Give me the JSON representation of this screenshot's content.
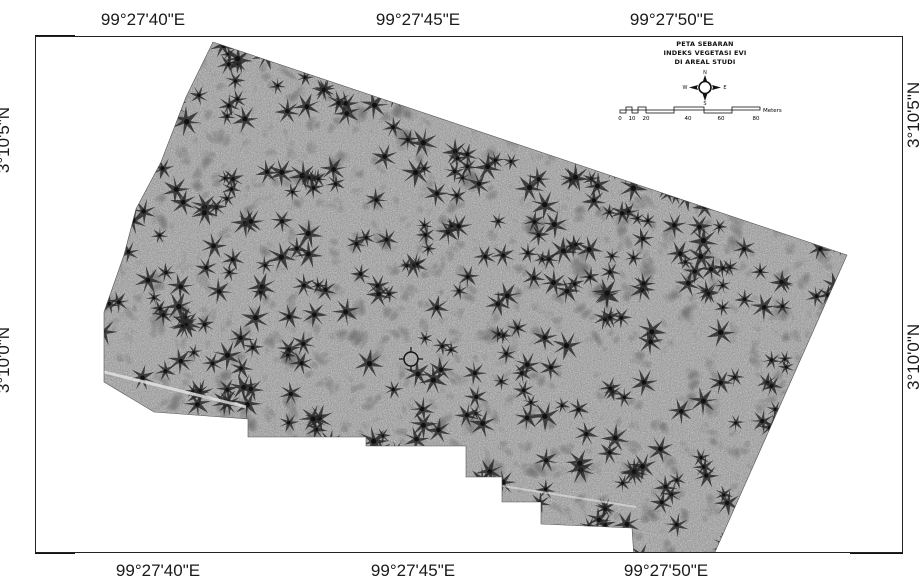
{
  "graticule": {
    "top_labels": [
      "99°27'40\"E",
      "99°27'45\"E",
      "99°27'50\"E"
    ],
    "bottom_labels": [
      "99°27'40\"E",
      "99°27'45\"E",
      "99°27'50\"E"
    ],
    "left_labels": [
      "3°10'5\"N",
      "3°10'0\"N"
    ],
    "right_labels": [
      "3°10'5\"N",
      "3°10'0\"N"
    ]
  },
  "map": {
    "imagery": "orthophoto-grayscale-palm-plantation",
    "frame_color": "#222222",
    "background_color": "#ffffff"
  },
  "legend": {
    "title_line1": "PETA SEBARAN",
    "title_line2": "INDEKS VEGETASI EVI",
    "title_line3": "DI AREAL STUDI",
    "north_arrow": {
      "icon": "compass-rose-icon",
      "n": "N",
      "s": "S",
      "e": "E",
      "w": "W"
    },
    "scale_bar": {
      "ticks": [
        "0",
        "10",
        "20",
        "40",
        "60",
        "80"
      ],
      "unit": "Meters"
    }
  },
  "marker": {
    "icon": "crosshair-target-icon"
  }
}
